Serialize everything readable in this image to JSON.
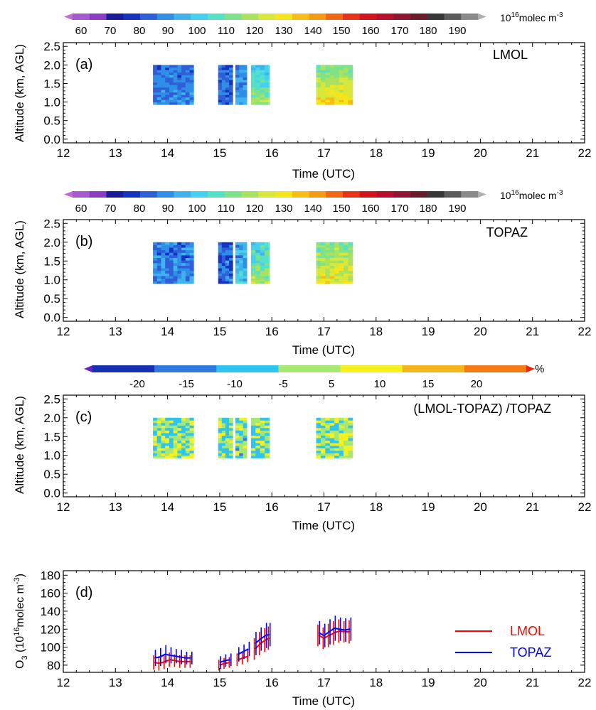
{
  "colorbar_conc": {
    "ticks": [
      "60",
      "70",
      "80",
      "90",
      "100",
      "110",
      "120",
      "130",
      "140",
      "150",
      "160",
      "170",
      "180",
      "190"
    ],
    "unit_base": "10",
    "unit_exp": "16",
    "unit_rest": "molec m",
    "unit_rest_exp": "-3"
  },
  "colorbar_diff": {
    "ticks": [
      "-20",
      "-15",
      "-10",
      "-5",
      "5",
      "10",
      "15",
      "20"
    ],
    "unit": "%"
  },
  "chart_data": [
    {
      "type": "heatmap",
      "panel_label": "(a)",
      "annotation": "LMOL",
      "xlabel": "Time (UTC)",
      "ylabel": "Altitude (km, AGL)",
      "xlim": [
        12,
        22
      ],
      "ylim": [
        -0.1,
        2.6
      ],
      "xticks": [
        "12",
        "13",
        "14",
        "15",
        "16",
        "17",
        "18",
        "19",
        "20",
        "21",
        "22"
      ],
      "yticks": [
        "0.0",
        "0.5",
        "1.0",
        "1.5",
        "2.0",
        "2.5"
      ],
      "colorbar": "molec",
      "value_range": [
        55,
        195
      ],
      "blocks": [
        {
          "t0": 13.72,
          "t1": 14.5,
          "z0": 0.93,
          "z1": 2.0,
          "cols": 10,
          "rows": 16,
          "base": 86,
          "grad": 4,
          "noise": 6,
          "seed": 11
        },
        {
          "t0": 14.97,
          "t1": 15.25,
          "z0": 0.93,
          "z1": 2.0,
          "cols": 4,
          "rows": 16,
          "base": 84,
          "grad": 2,
          "noise": 5,
          "seed": 12
        },
        {
          "t0": 15.3,
          "t1": 15.52,
          "z0": 0.93,
          "z1": 2.0,
          "cols": 3,
          "rows": 16,
          "base": 88,
          "grad": 6,
          "noise": 5,
          "seed": 13
        },
        {
          "t0": 15.6,
          "t1": 15.95,
          "z0": 0.93,
          "z1": 2.0,
          "cols": 4,
          "rows": 16,
          "base": 98,
          "grad": 18,
          "noise": 6,
          "seed": 14
        },
        {
          "t0": 16.85,
          "t1": 17.55,
          "z0": 0.93,
          "z1": 2.0,
          "cols": 8,
          "rows": 16,
          "base": 110,
          "grad": 20,
          "noise": 5,
          "seed": 15
        }
      ]
    },
    {
      "type": "heatmap",
      "panel_label": "(b)",
      "annotation": "TOPAZ",
      "xlabel": "Time (UTC)",
      "ylabel": "Altitude (km, AGL)",
      "xlim": [
        12,
        22
      ],
      "ylim": [
        -0.1,
        2.6
      ],
      "xticks": [
        "12",
        "13",
        "14",
        "15",
        "16",
        "17",
        "18",
        "19",
        "20",
        "21",
        "22"
      ],
      "yticks": [
        "0.0",
        "0.5",
        "1.0",
        "1.5",
        "2.0",
        "2.5"
      ],
      "colorbar": "molec",
      "value_range": [
        55,
        195
      ],
      "blocks": [
        {
          "t0": 13.72,
          "t1": 14.5,
          "z0": 0.9,
          "z1": 2.0,
          "cols": 10,
          "rows": 16,
          "base": 87,
          "grad": 4,
          "noise": 7,
          "seed": 21
        },
        {
          "t0": 14.97,
          "t1": 15.25,
          "z0": 0.9,
          "z1": 2.0,
          "cols": 4,
          "rows": 16,
          "base": 85,
          "grad": 2,
          "noise": 7,
          "seed": 22
        },
        {
          "t0": 15.3,
          "t1": 15.52,
          "z0": 0.9,
          "z1": 2.0,
          "cols": 3,
          "rows": 16,
          "base": 92,
          "grad": 6,
          "noise": 8,
          "seed": 23
        },
        {
          "t0": 15.6,
          "t1": 15.95,
          "z0": 0.9,
          "z1": 2.0,
          "cols": 4,
          "rows": 16,
          "base": 102,
          "grad": 14,
          "noise": 8,
          "seed": 24
        },
        {
          "t0": 16.85,
          "t1": 17.55,
          "z0": 0.9,
          "z1": 2.0,
          "cols": 8,
          "rows": 16,
          "base": 112,
          "grad": 14,
          "noise": 7,
          "seed": 25
        }
      ]
    },
    {
      "type": "heatmap",
      "panel_label": "(c)",
      "annotation": "(LMOL-TOPAZ) /TOPAZ",
      "xlabel": "Time (UTC)",
      "ylabel": "Altitude (km, AGL)",
      "xlim": [
        12,
        22
      ],
      "ylim": [
        -0.1,
        2.6
      ],
      "xticks": [
        "12",
        "13",
        "14",
        "15",
        "16",
        "17",
        "18",
        "19",
        "20",
        "21",
        "22"
      ],
      "yticks": [
        "0.0",
        "0.5",
        "1.0",
        "1.5",
        "2.0",
        "2.5"
      ],
      "colorbar": "diff",
      "value_range": [
        -25,
        25
      ],
      "blocks": [
        {
          "t0": 13.72,
          "t1": 14.5,
          "z0": 0.93,
          "z1": 2.0,
          "cols": 10,
          "rows": 16,
          "base": -1,
          "grad": 0,
          "noise": 7,
          "seed": 31
        },
        {
          "t0": 14.97,
          "t1": 15.25,
          "z0": 0.93,
          "z1": 2.0,
          "cols": 4,
          "rows": 16,
          "base": -1,
          "grad": 0,
          "noise": 7,
          "seed": 32
        },
        {
          "t0": 15.3,
          "t1": 15.52,
          "z0": 0.93,
          "z1": 2.0,
          "cols": 3,
          "rows": 16,
          "base": -2,
          "grad": 0,
          "noise": 8,
          "seed": 33
        },
        {
          "t0": 15.6,
          "t1": 15.95,
          "z0": 0.93,
          "z1": 2.0,
          "cols": 4,
          "rows": 16,
          "base": -1,
          "grad": 0,
          "noise": 7,
          "seed": 34
        },
        {
          "t0": 16.85,
          "t1": 17.55,
          "z0": 0.93,
          "z1": 2.0,
          "cols": 8,
          "rows": 16,
          "base": 0,
          "grad": 0,
          "noise": 7,
          "seed": 35
        }
      ]
    },
    {
      "type": "line",
      "panel_label": "(d)",
      "xlabel": "Time (UTC)",
      "ylabel_base": "O",
      "ylabel_sub": "3",
      "ylabel_mid": " (10",
      "ylabel_sup": "16",
      "ylabel_rest": "molec m",
      "ylabel_sup2": "-3",
      "ylabel_end": ")",
      "xlim": [
        12,
        22
      ],
      "ylim": [
        72,
        185
      ],
      "xticks": [
        "12",
        "13",
        "14",
        "15",
        "16",
        "17",
        "18",
        "19",
        "20",
        "21",
        "22"
      ],
      "yticks": [
        "80",
        "100",
        "120",
        "140",
        "160",
        "180"
      ],
      "series": [
        {
          "name": "LMOL",
          "color": "#ff0000",
          "segments": [
            {
              "x": [
                13.75,
                13.85,
                13.95,
                14.05,
                14.15,
                14.25,
                14.35,
                14.45
              ],
              "y": [
                83,
                82,
                84,
                86,
                85,
                84,
                84,
                84
              ],
              "err": [
                8,
                8,
                8,
                8,
                7,
                7,
                7,
                7
              ]
            },
            {
              "x": [
                15.0,
                15.1,
                15.2
              ],
              "y": [
                80,
                82,
                83
              ],
              "err": [
                6,
                6,
                6
              ]
            },
            {
              "x": [
                15.35,
                15.45,
                15.55
              ],
              "y": [
                86,
                88,
                90
              ],
              "err": [
                7,
                7,
                7
              ]
            },
            {
              "x": [
                15.68,
                15.78,
                15.88,
                15.95
              ],
              "y": [
                98,
                104,
                108,
                110
              ],
              "err": [
                12,
                13,
                13,
                13
              ]
            },
            {
              "x": [
                16.9,
                17.0,
                17.1,
                17.2,
                17.3,
                17.4,
                17.5
              ],
              "y": [
                113,
                110,
                113,
                116,
                118,
                117,
                117
              ],
              "err": [
                12,
                12,
                13,
                13,
                13,
                12,
                13
              ]
            }
          ]
        },
        {
          "name": "TOPAZ",
          "color": "#0000ff",
          "segments": [
            {
              "x": [
                13.75,
                13.85,
                13.95,
                14.05,
                14.15,
                14.25,
                14.35,
                14.45
              ],
              "y": [
                88,
                89,
                92,
                91,
                90,
                89,
                88,
                88
              ],
              "err": [
                9,
                10,
                10,
                9,
                8,
                8,
                7,
                7
              ]
            },
            {
              "x": [
                15.0,
                15.1,
                15.2
              ],
              "y": [
                83,
                85,
                86
              ],
              "err": [
                7,
                7,
                7
              ]
            },
            {
              "x": [
                15.35,
                15.45,
                15.55
              ],
              "y": [
                92,
                95,
                98
              ],
              "err": [
                8,
                8,
                8
              ]
            },
            {
              "x": [
                15.68,
                15.78,
                15.88,
                15.95
              ],
              "y": [
                104,
                109,
                113,
                114
              ],
              "err": [
                13,
                13,
                14,
                13
              ]
            },
            {
              "x": [
                16.9,
                17.0,
                17.1,
                17.2,
                17.3,
                17.4,
                17.5
              ],
              "y": [
                116,
                113,
                117,
                121,
                120,
                119,
                120
              ],
              "err": [
                13,
                13,
                14,
                14,
                13,
                13,
                13
              ]
            }
          ]
        }
      ]
    }
  ]
}
